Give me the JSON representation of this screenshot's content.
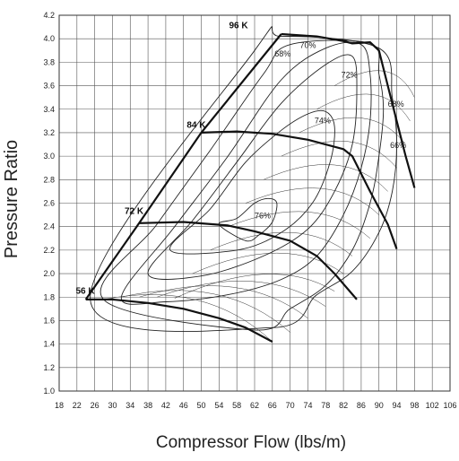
{
  "chart_data": {
    "type": "line",
    "title": "",
    "xlabel": "Compressor Flow (lbs/m)",
    "ylabel": "Pressure Ratio",
    "xlim": [
      18,
      106
    ],
    "ylim": [
      1.0,
      4.2
    ],
    "xticks": [
      "18",
      "22",
      "26",
      "30",
      "34",
      "38",
      "42",
      "46",
      "50",
      "54",
      "58",
      "62",
      "66",
      "70",
      "74",
      "78",
      "82",
      "86",
      "90",
      "94",
      "98",
      "102",
      "106"
    ],
    "yticks": [
      "1.0",
      "1.2",
      "1.4",
      "1.6",
      "1.8",
      "2.0",
      "2.2",
      "2.4",
      "2.6",
      "2.8",
      "3.0",
      "3.2",
      "3.4",
      "3.6",
      "3.8",
      "4.0",
      "4.2"
    ],
    "grid": true,
    "surge_line": [
      [
        24,
        1.78
      ],
      [
        36,
        2.43
      ],
      [
        50,
        3.2
      ],
      [
        68,
        4.04
      ]
    ],
    "speed_lines": [
      {
        "name": "56 K",
        "points": [
          [
            24,
            1.78
          ],
          [
            30,
            1.78
          ],
          [
            38,
            1.75
          ],
          [
            46,
            1.7
          ],
          [
            54,
            1.62
          ],
          [
            60,
            1.54
          ],
          [
            66,
            1.42
          ]
        ]
      },
      {
        "name": "72 K",
        "points": [
          [
            36,
            2.43
          ],
          [
            46,
            2.44
          ],
          [
            56,
            2.41
          ],
          [
            62,
            2.36
          ],
          [
            70,
            2.28
          ],
          [
            76,
            2.15
          ],
          [
            80,
            2.0
          ],
          [
            85,
            1.78
          ]
        ]
      },
      {
        "name": "84 K",
        "points": [
          [
            50,
            3.2
          ],
          [
            58,
            3.21
          ],
          [
            66,
            3.19
          ],
          [
            74,
            3.14
          ],
          [
            82,
            3.06
          ],
          [
            84,
            3.0
          ],
          [
            88,
            2.7
          ],
          [
            92,
            2.42
          ],
          [
            94,
            2.21
          ]
        ]
      },
      {
        "name": "96 K",
        "points": [
          [
            68,
            4.04
          ],
          [
            76,
            4.02
          ],
          [
            82,
            3.98
          ],
          [
            84,
            3.96
          ],
          [
            88,
            3.97
          ],
          [
            90,
            3.9
          ],
          [
            92,
            3.6
          ],
          [
            94,
            3.3
          ],
          [
            96,
            3.0
          ],
          [
            98,
            2.73
          ]
        ]
      }
    ],
    "efficiency_islands": [
      {
        "label": "76%",
        "points": [
          [
            54,
            2.42
          ],
          [
            58,
            2.47
          ],
          [
            62,
            2.6
          ],
          [
            65,
            2.64
          ],
          [
            67,
            2.6
          ],
          [
            66,
            2.44
          ],
          [
            63,
            2.33
          ],
          [
            60,
            2.28
          ]
        ]
      },
      {
        "label": "74%",
        "points": [
          [
            43,
            2.2
          ],
          [
            52,
            2.55
          ],
          [
            60,
            2.95
          ],
          [
            68,
            3.22
          ],
          [
            74,
            3.36
          ],
          [
            78,
            3.38
          ],
          [
            80,
            3.25
          ],
          [
            79,
            2.95
          ],
          [
            75,
            2.6
          ],
          [
            68,
            2.35
          ],
          [
            58,
            2.2
          ]
        ]
      },
      {
        "label": "72%",
        "points": [
          [
            38,
            2.0
          ],
          [
            48,
            2.45
          ],
          [
            58,
            2.95
          ],
          [
            68,
            3.45
          ],
          [
            78,
            3.78
          ],
          [
            84,
            3.85
          ],
          [
            85,
            3.55
          ],
          [
            84,
            3.1
          ],
          [
            80,
            2.7
          ],
          [
            74,
            2.38
          ],
          [
            64,
            2.15
          ],
          [
            50,
            1.98
          ]
        ]
      },
      {
        "label": "70%",
        "points": [
          [
            32,
            1.8
          ],
          [
            44,
            2.4
          ],
          [
            56,
            3.0
          ],
          [
            68,
            3.65
          ],
          [
            78,
            3.92
          ],
          [
            86,
            3.95
          ],
          [
            88,
            3.7
          ],
          [
            88,
            3.3
          ],
          [
            86,
            2.9
          ],
          [
            82,
            2.5
          ],
          [
            76,
            2.15
          ],
          [
            68,
            1.95
          ],
          [
            56,
            1.82
          ],
          [
            42,
            1.76
          ]
        ]
      },
      {
        "label": "68%",
        "points": [
          [
            28,
            1.78
          ],
          [
            40,
            2.42
          ],
          [
            52,
            3.05
          ],
          [
            64,
            3.7
          ],
          [
            70,
            3.95
          ],
          [
            88,
            3.96
          ],
          [
            90,
            3.7
          ],
          [
            91,
            3.4
          ],
          [
            90,
            3.0
          ],
          [
            88,
            2.6
          ],
          [
            84,
            2.2
          ],
          [
            78,
            1.9
          ],
          [
            70,
            1.7
          ],
          [
            62,
            1.52
          ]
        ]
      },
      {
        "label": "66%",
        "points": [
          [
            25,
            1.78
          ],
          [
            62,
            3.9
          ],
          [
            68,
            4.02
          ],
          [
            90,
            3.92
          ],
          [
            93,
            3.5
          ],
          [
            94,
            3.1
          ],
          [
            93,
            2.7
          ],
          [
            90,
            2.35
          ],
          [
            84,
            2.02
          ],
          [
            76,
            1.82
          ],
          [
            66,
            1.54
          ]
        ]
      }
    ],
    "labels": {
      "pct": [
        "68%",
        "70%",
        "72%",
        "74%",
        "76%",
        "68%",
        "66%"
      ],
      "speed": [
        "96 K",
        "84 K",
        "72 K",
        "56 K"
      ]
    }
  }
}
